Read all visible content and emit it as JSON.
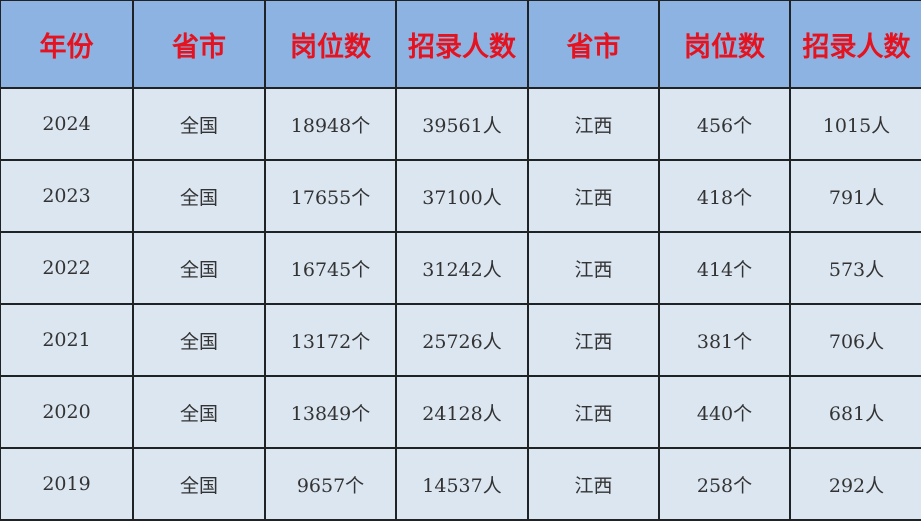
{
  "colors": {
    "header_bg": "#8db3e2",
    "header_text": "#e5121f",
    "body_bg": "#dce6f1",
    "border": "#1f2326"
  },
  "headers": [
    "年份",
    "省市",
    "岗位数",
    "招录人数",
    "省市",
    "岗位数",
    "招录人数"
  ],
  "rows": [
    [
      "2024",
      "全国",
      "18948个",
      "39561人",
      "江西",
      "456个",
      "1015人"
    ],
    [
      "2023",
      "全国",
      "17655个",
      "37100人",
      "江西",
      "418个",
      "791人"
    ],
    [
      "2022",
      "全国",
      "16745个",
      "31242人",
      "江西",
      "414个",
      "573人"
    ],
    [
      "2021",
      "全国",
      "13172个",
      "25726人",
      "江西",
      "381个",
      "706人"
    ],
    [
      "2020",
      "全国",
      "13849个",
      "24128人",
      "江西",
      "440个",
      "681人"
    ],
    [
      "2019",
      "全国",
      "9657个",
      "14537人",
      "江西",
      "258个",
      "292人"
    ]
  ]
}
